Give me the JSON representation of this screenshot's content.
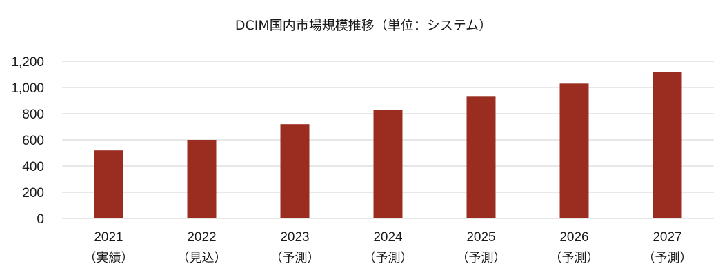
{
  "chart_data": {
    "type": "bar",
    "title": "DCIM国内市場規模推移（単位：システム）",
    "categories": [
      {
        "year": "2021",
        "note": "（実績）"
      },
      {
        "year": "2022",
        "note": "（見込）"
      },
      {
        "year": "2023",
        "note": "（予測）"
      },
      {
        "year": "2024",
        "note": "（予測）"
      },
      {
        "year": "2025",
        "note": "（予測）"
      },
      {
        "year": "2026",
        "note": "（予測）"
      },
      {
        "year": "2027",
        "note": "（予測）"
      }
    ],
    "values": [
      520,
      600,
      720,
      830,
      930,
      1030,
      1120
    ],
    "ylim": [
      0,
      1200
    ],
    "yticks": [
      0,
      200,
      400,
      600,
      800,
      1000,
      1200
    ],
    "ytick_labels": [
      "0",
      "200",
      "400",
      "600",
      "800",
      "1,000",
      "1,200"
    ],
    "xlabel": "",
    "ylabel": "",
    "grid": true,
    "bar_color": "#9b2d20"
  }
}
